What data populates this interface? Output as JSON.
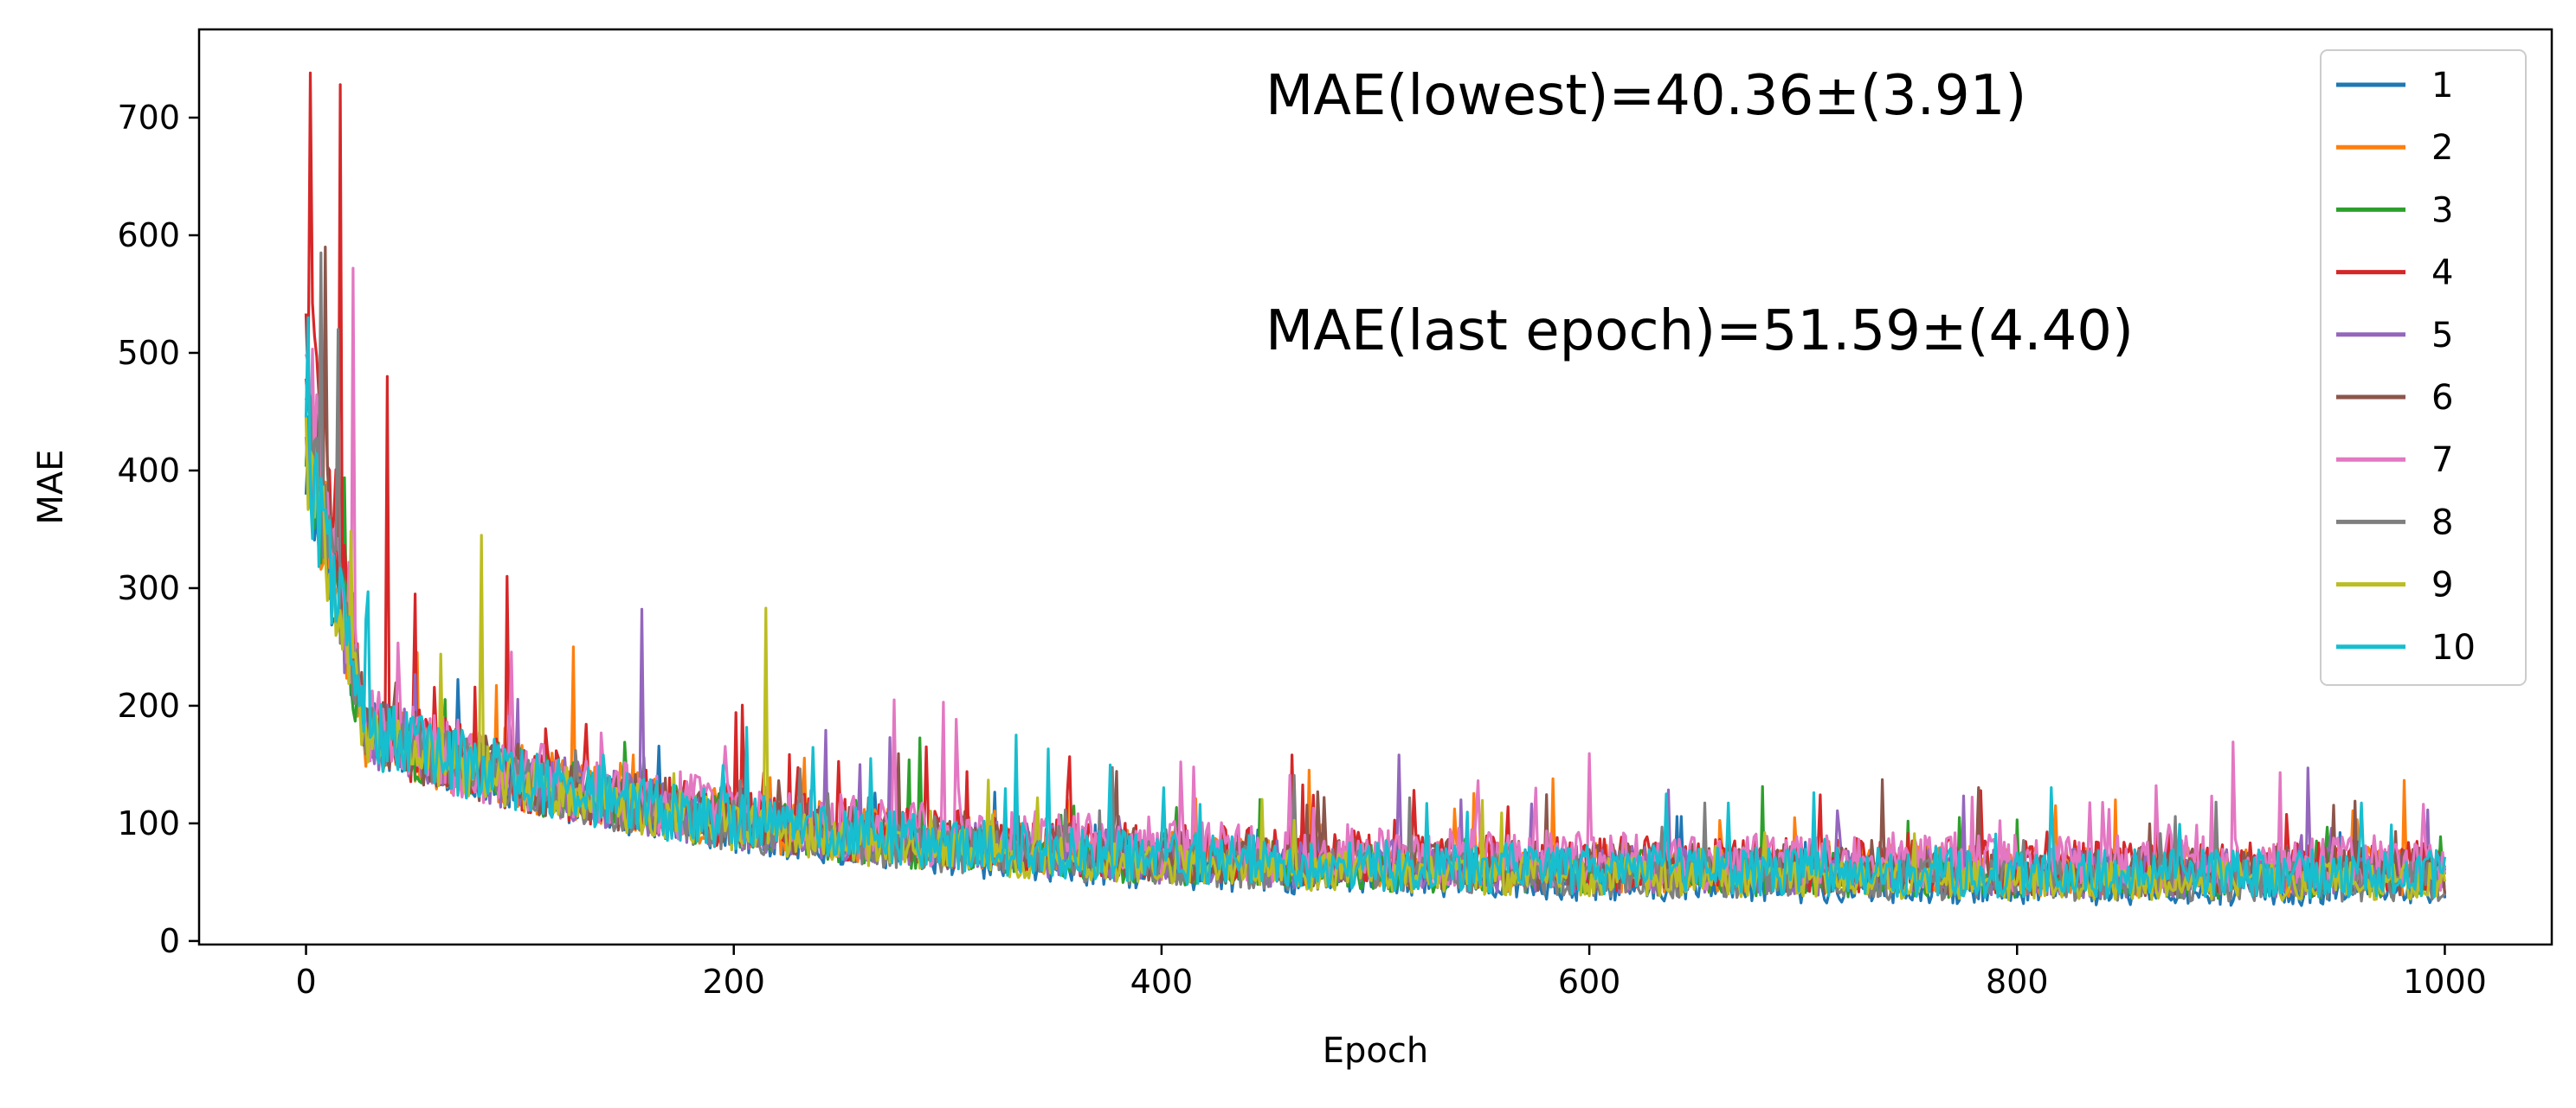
{
  "chart_data": {
    "type": "line",
    "xlabel": "Epoch",
    "ylabel": "MAE",
    "xlim": [
      -50,
      1050
    ],
    "ylim": [
      -3,
      775
    ],
    "xticks": [
      0,
      200,
      400,
      600,
      800,
      1000
    ],
    "yticks": [
      0,
      100,
      200,
      300,
      400,
      500,
      600,
      700
    ],
    "grid": false,
    "legend_position": "top-right",
    "annotations": [
      "MAE(lowest)=40.36±(3.91)",
      "MAE(last epoch)=51.59±(4.40)"
    ],
    "series": [
      {
        "name": "1",
        "color": "#1f77b4",
        "start": 390,
        "end": 40,
        "noise": 14,
        "spikes": [
          [
            1,
            420
          ],
          [
            2,
            395
          ]
        ]
      },
      {
        "name": "2",
        "color": "#ff7f0e",
        "start": 410,
        "end": 52,
        "noise": 20,
        "spikes": [
          [
            125,
            250
          ],
          [
            583,
            138
          ],
          [
            818,
            115
          ]
        ]
      },
      {
        "name": "3",
        "color": "#2ca02c",
        "start": 400,
        "end": 48,
        "noise": 18,
        "spikes": [
          [
            800,
            103
          ],
          [
            940,
            85
          ]
        ]
      },
      {
        "name": "4",
        "color": "#d62728",
        "start": 520,
        "end": 55,
        "noise": 22,
        "spikes": [
          [
            2,
            738
          ],
          [
            16,
            728
          ],
          [
            38,
            480
          ],
          [
            94,
            310
          ],
          [
            290,
            165
          ]
        ]
      },
      {
        "name": "5",
        "color": "#9467bd",
        "start": 410,
        "end": 50,
        "noise": 20,
        "spikes": [
          [
            157,
            282
          ],
          [
            540,
            120
          ]
        ]
      },
      {
        "name": "6",
        "color": "#8c564b",
        "start": 450,
        "end": 52,
        "noise": 20,
        "spikes": [
          [
            9,
            590
          ]
        ]
      },
      {
        "name": "7",
        "color": "#e377c2",
        "start": 460,
        "end": 58,
        "noise": 24,
        "spikes": [
          [
            22,
            572
          ],
          [
            275,
            205
          ],
          [
            415,
            148
          ],
          [
            575,
            130
          ]
        ]
      },
      {
        "name": "8",
        "color": "#7f7f7f",
        "start": 420,
        "end": 45,
        "noise": 16,
        "spikes": [
          [
            7,
            585
          ],
          [
            15,
            520
          ]
        ]
      },
      {
        "name": "9",
        "color": "#bcbd22",
        "start": 400,
        "end": 45,
        "noise": 15,
        "spikes": [
          [
            82,
            345
          ],
          [
            215,
            283
          ]
        ]
      },
      {
        "name": "10",
        "color": "#17becf",
        "start": 390,
        "end": 50,
        "noise": 20,
        "spikes": [
          [
            1,
            530
          ],
          [
            332,
            175
          ],
          [
            636,
            125
          ]
        ]
      }
    ]
  }
}
